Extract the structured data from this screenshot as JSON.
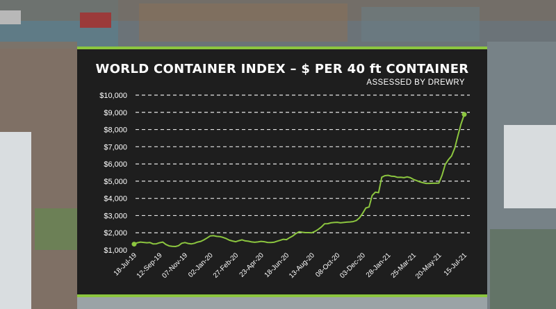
{
  "chart_data": {
    "type": "line",
    "title": "WORLD CONTAINER INDEX – $ PER 40 ft CONTAINER",
    "subtitle": "ASSESSED BY DREWRY",
    "xlabel": "",
    "ylabel": "",
    "ylim": [
      1000,
      10000
    ],
    "grid": true,
    "y_ticks": [
      "$1,000",
      "$2,000",
      "$3,000",
      "$4,000",
      "$5,000",
      "$6,000",
      "$7,000",
      "$8,000",
      "$9,000",
      "$10,000"
    ],
    "x_ticks": [
      "18-Jul-19",
      "12-Sep-19",
      "07-Nov-19",
      "02-Jan-20",
      "27-Feb-20",
      "23-Apr-20",
      "18-Jun-20",
      "13-Aug-20",
      "08-Oct-20",
      "03-Dec-20",
      "28-Jan-21",
      "25-Mar-21",
      "20-May-21",
      "15-Jul-21"
    ],
    "series": [
      {
        "color": "#8cc63f",
        "x": [
          "18-Jul-19",
          "25-Jul-19",
          "01-Aug-19",
          "08-Aug-19",
          "15-Aug-19",
          "22-Aug-19",
          "29-Aug-19",
          "05-Sep-19",
          "12-Sep-19",
          "19-Sep-19",
          "26-Sep-19",
          "03-Oct-19",
          "10-Oct-19",
          "17-Oct-19",
          "24-Oct-19",
          "31-Oct-19",
          "07-Nov-19",
          "14-Nov-19",
          "21-Nov-19",
          "28-Nov-19",
          "05-Dec-19",
          "12-Dec-19",
          "19-Dec-19",
          "26-Dec-19",
          "02-Jan-20",
          "09-Jan-20",
          "16-Jan-20",
          "23-Jan-20",
          "30-Jan-20",
          "06-Feb-20",
          "13-Feb-20",
          "20-Feb-20",
          "27-Feb-20",
          "05-Mar-20",
          "12-Mar-20",
          "19-Mar-20",
          "26-Mar-20",
          "02-Apr-20",
          "09-Apr-20",
          "16-Apr-20",
          "23-Apr-20",
          "30-Apr-20",
          "07-May-20",
          "14-May-20",
          "21-May-20",
          "28-May-20",
          "04-Jun-20",
          "11-Jun-20",
          "18-Jun-20",
          "25-Jun-20",
          "02-Jul-20",
          "09-Jul-20",
          "16-Jul-20",
          "23-Jul-20",
          "30-Jul-20",
          "06-Aug-20",
          "13-Aug-20",
          "20-Aug-20",
          "27-Aug-20",
          "03-Sep-20",
          "10-Sep-20",
          "17-Sep-20",
          "24-Sep-20",
          "01-Oct-20",
          "08-Oct-20",
          "15-Oct-20",
          "22-Oct-20",
          "29-Oct-20",
          "05-Nov-20",
          "12-Nov-20",
          "19-Nov-20",
          "26-Nov-20",
          "03-Dec-20",
          "10-Dec-20",
          "17-Dec-20",
          "24-Dec-20",
          "31-Dec-20",
          "07-Jan-21",
          "14-Jan-21",
          "21-Jan-21",
          "28-Jan-21",
          "04-Feb-21",
          "11-Feb-21",
          "18-Feb-21",
          "25-Feb-21",
          "04-Mar-21",
          "11-Mar-21",
          "18-Mar-21",
          "25-Mar-21",
          "01-Apr-21",
          "08-Apr-21",
          "15-Apr-21",
          "22-Apr-21",
          "29-Apr-21",
          "06-May-21",
          "13-May-21",
          "20-May-21",
          "27-May-21",
          "03-Jun-21",
          "10-Jun-21",
          "17-Jun-21",
          "24-Jun-21",
          "01-Jul-21",
          "08-Jul-21",
          "15-Jul-21"
        ],
        "values": [
          1340,
          1420,
          1460,
          1440,
          1420,
          1430,
          1350,
          1360,
          1420,
          1460,
          1320,
          1240,
          1210,
          1200,
          1250,
          1390,
          1430,
          1380,
          1350,
          1390,
          1460,
          1500,
          1590,
          1700,
          1820,
          1830,
          1790,
          1780,
          1730,
          1660,
          1570,
          1520,
          1480,
          1540,
          1590,
          1530,
          1510,
          1470,
          1450,
          1470,
          1500,
          1480,
          1440,
          1430,
          1450,
          1510,
          1560,
          1620,
          1600,
          1720,
          1820,
          1960,
          2060,
          2030,
          2010,
          2010,
          2000,
          2080,
          2200,
          2340,
          2520,
          2530,
          2580,
          2600,
          2610,
          2580,
          2600,
          2620,
          2630,
          2650,
          2710,
          2870,
          3130,
          3440,
          3500,
          4170,
          4360,
          4330,
          5230,
          5320,
          5340,
          5290,
          5280,
          5220,
          5230,
          5200,
          5250,
          5200,
          5100,
          5030,
          4960,
          4910,
          4870,
          4870,
          4880,
          4880,
          4890,
          5340,
          5970,
          6250,
          6460,
          6920,
          7650,
          8330,
          8880
        ]
      }
    ]
  }
}
